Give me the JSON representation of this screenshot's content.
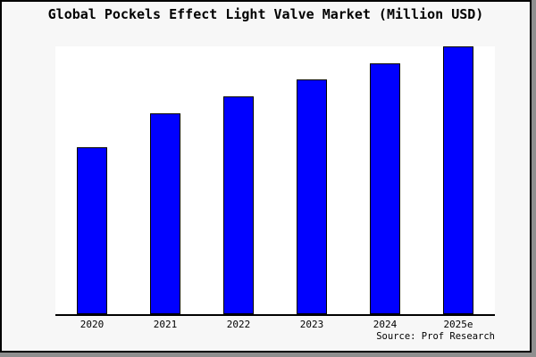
{
  "title": "Global Pockels Effect Light Valve Market (Million USD)",
  "source_note": "Source: Prof Research",
  "colors": {
    "bar_fill": "#0000ff",
    "bar_border": "#000000",
    "plot_background": "#ffffff",
    "canvas_background": "#f7f7f7",
    "frame_border": "#000000",
    "axis": "#000000",
    "text": "#000000"
  },
  "chart_data": {
    "type": "bar",
    "title": "Global Pockels Effect Light Valve Market (Million USD)",
    "categories": [
      "2020",
      "2021",
      "2022",
      "2023",
      "2024",
      "2025e"
    ],
    "values_percent_of_max": [
      62.4,
      75.0,
      81.4,
      87.8,
      93.6,
      100
    ],
    "value_axis_note": "no y-axis scale or data labels shown; values are relative bar heights",
    "xlabel": "",
    "ylabel": "",
    "y_axis_visible": false,
    "gridlines": false,
    "legend": false,
    "bar_color": "#0000ff",
    "source_note": "Source: Prof Research"
  }
}
